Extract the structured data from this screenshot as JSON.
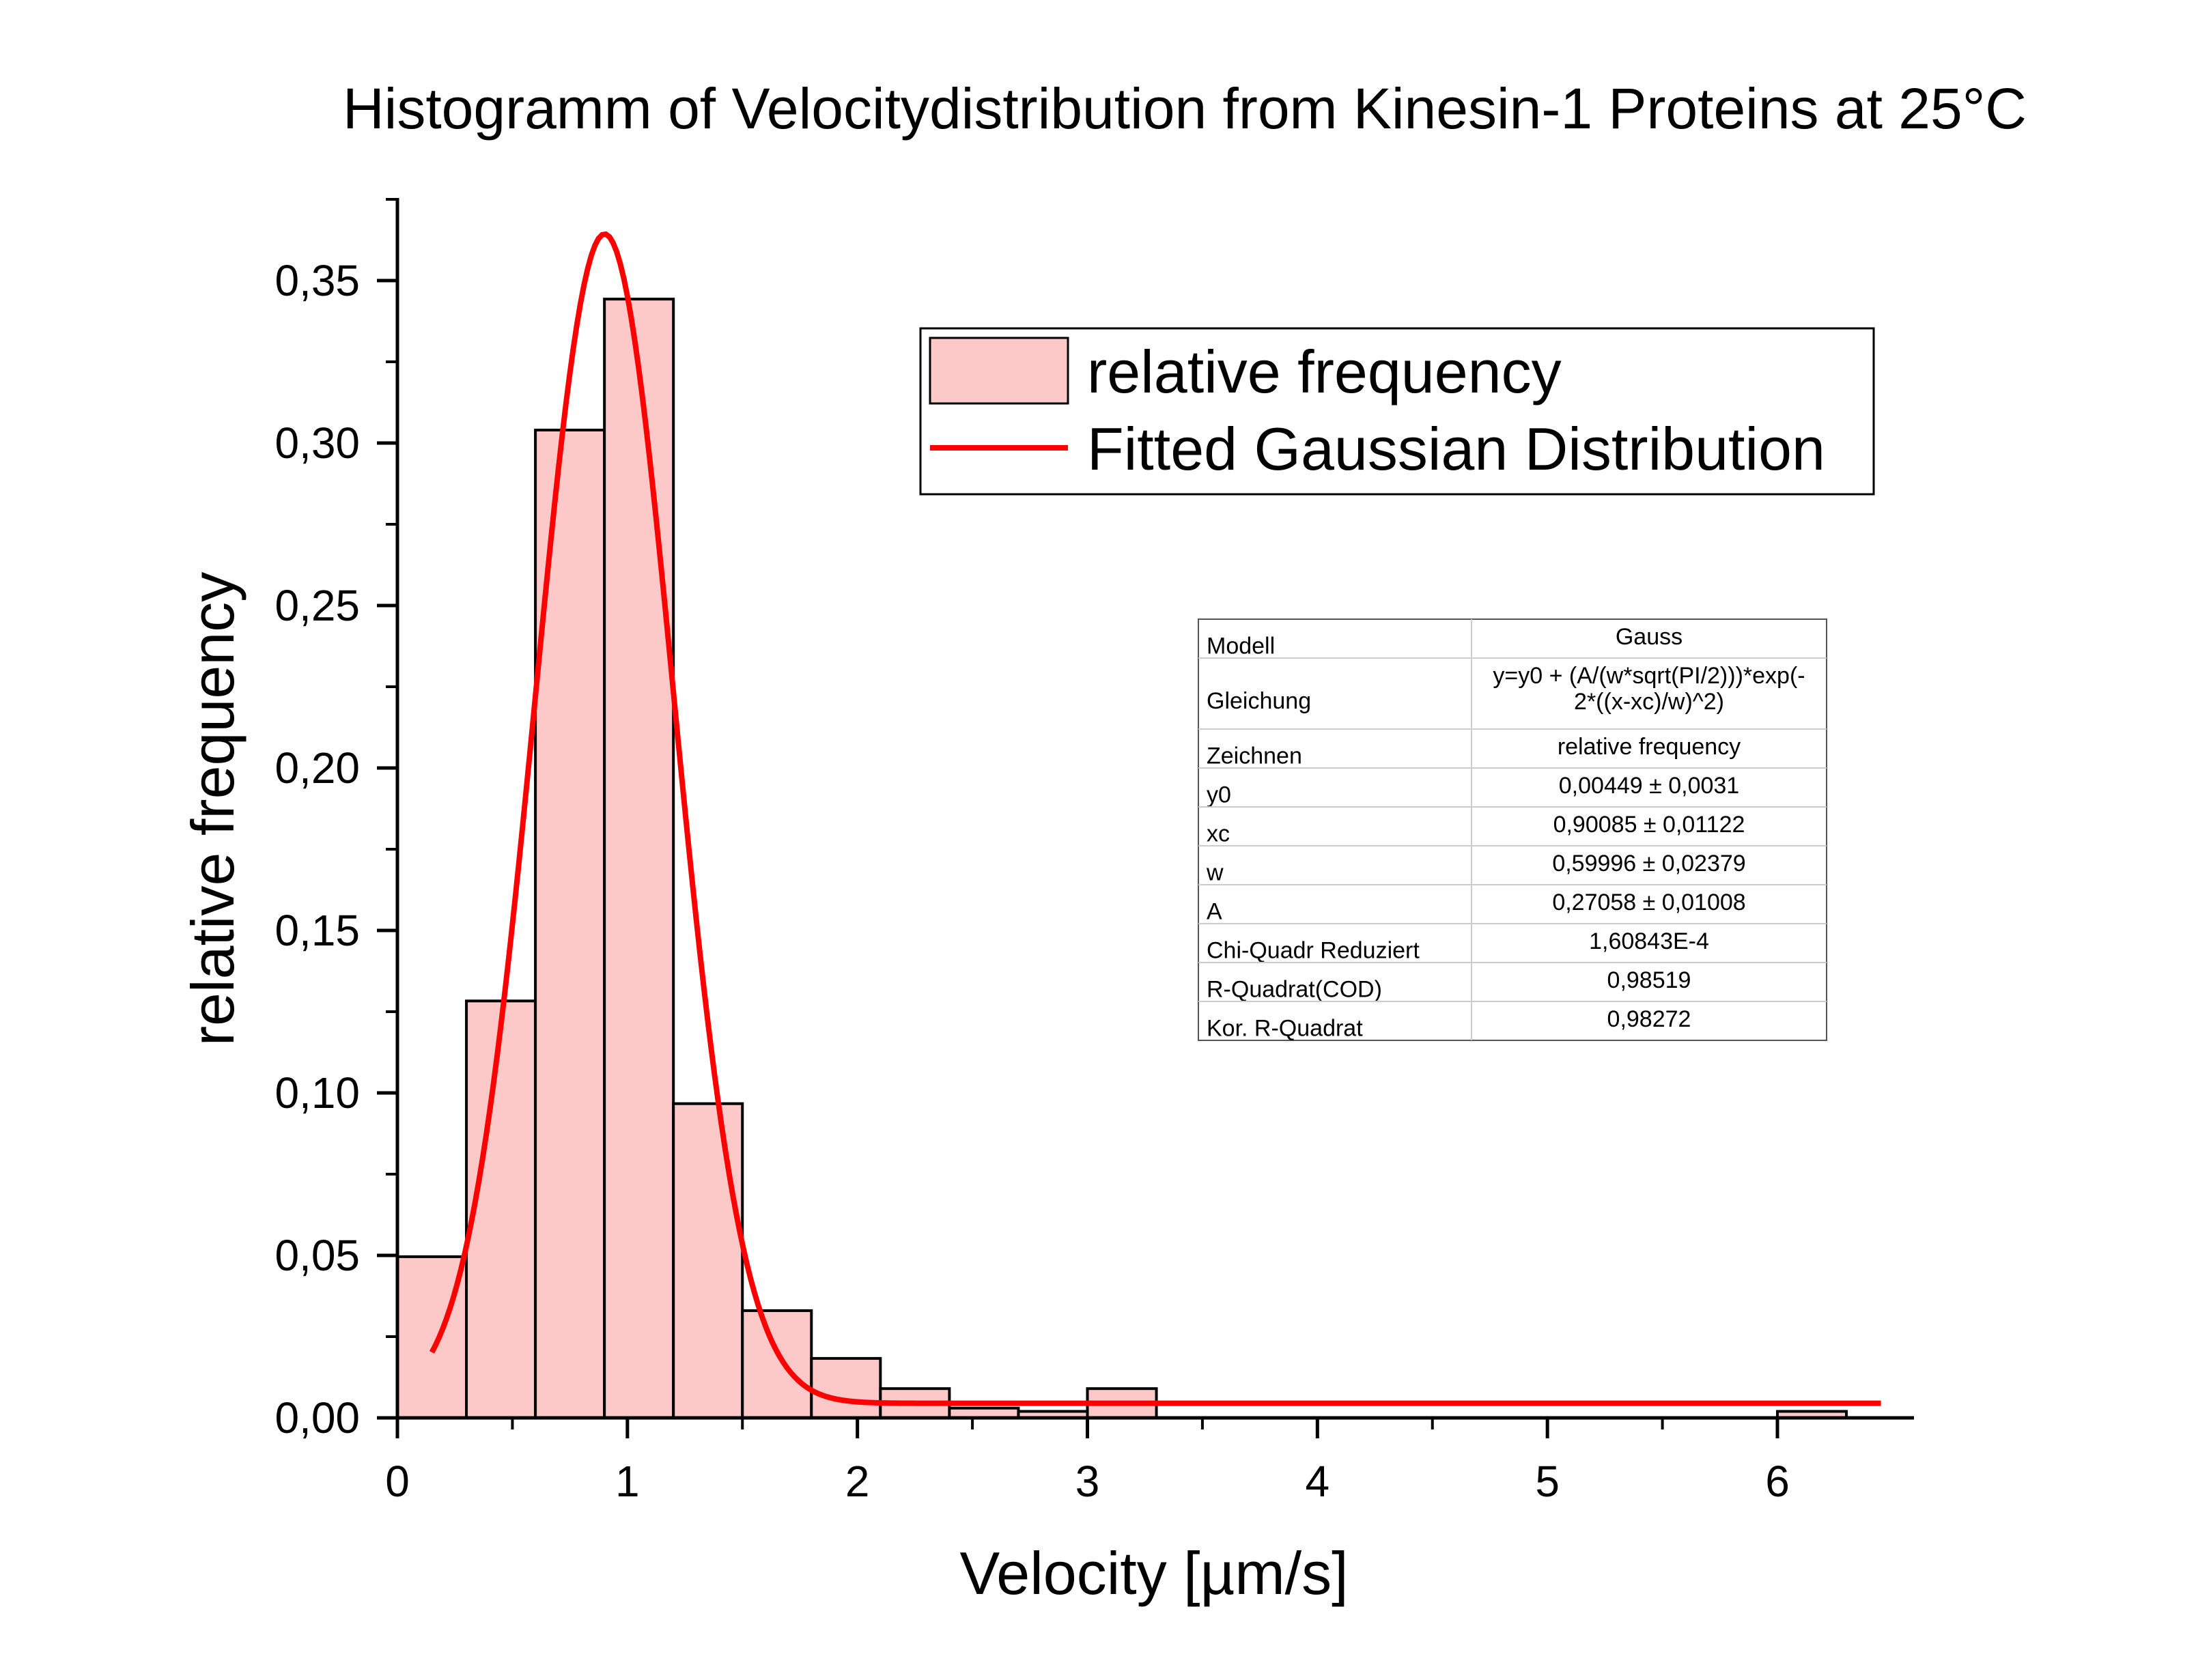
{
  "chart_data": {
    "type": "bar",
    "title": "Histogramm of Velocitydistribution from Kinesin-1 Proteins at 25°C",
    "xlabel": "Velocity [µm/s]",
    "ylabel": "relative frequency",
    "xlim": [
      0,
      6.5
    ],
    "ylim": [
      0,
      0.375
    ],
    "xticks": [
      {
        "value": 0,
        "label": "0"
      },
      {
        "value": 1,
        "label": "1"
      },
      {
        "value": 2,
        "label": "2"
      },
      {
        "value": 3,
        "label": "3"
      },
      {
        "value": 4,
        "label": "4"
      },
      {
        "value": 5,
        "label": "5"
      },
      {
        "value": 6,
        "label": "6"
      }
    ],
    "yticks": [
      {
        "value": 0.0,
        "label": "0,00"
      },
      {
        "value": 0.05,
        "label": "0,05"
      },
      {
        "value": 0.1,
        "label": "0,10"
      },
      {
        "value": 0.15,
        "label": "0,15"
      },
      {
        "value": 0.2,
        "label": "0,20"
      },
      {
        "value": 0.25,
        "label": "0,25"
      },
      {
        "value": 0.3,
        "label": "0,30"
      },
      {
        "value": 0.35,
        "label": "0,35"
      }
    ],
    "bin_width": 0.3,
    "series": [
      {
        "name": "relative frequency",
        "kind": "histogram",
        "color": "#fcc8c8",
        "edge_color": "#000000",
        "bins": [
          {
            "start": 0.0,
            "value": 0.0496
          },
          {
            "start": 0.3,
            "value": 0.1283
          },
          {
            "start": 0.6,
            "value": 0.304
          },
          {
            "start": 0.9,
            "value": 0.3443
          },
          {
            "start": 1.2,
            "value": 0.0967
          },
          {
            "start": 1.5,
            "value": 0.033
          },
          {
            "start": 1.8,
            "value": 0.0183
          },
          {
            "start": 2.1,
            "value": 0.009
          },
          {
            "start": 2.4,
            "value": 0.003
          },
          {
            "start": 2.7,
            "value": 0.002
          },
          {
            "start": 3.0,
            "value": 0.009
          },
          {
            "start": 3.3,
            "value": 0.0
          },
          {
            "start": 3.6,
            "value": 0.0
          },
          {
            "start": 3.9,
            "value": 0.0
          },
          {
            "start": 4.2,
            "value": 0.0
          },
          {
            "start": 4.5,
            "value": 0.0
          },
          {
            "start": 4.8,
            "value": 0.0
          },
          {
            "start": 5.1,
            "value": 0.0
          },
          {
            "start": 5.4,
            "value": 0.0
          },
          {
            "start": 5.7,
            "value": 0.0
          },
          {
            "start": 6.0,
            "value": 0.002
          }
        ]
      },
      {
        "name": "Fitted Gaussian Distribution",
        "kind": "line",
        "color": "#ff0000",
        "model": "gauss",
        "params": {
          "y0": 0.00449,
          "xc": 0.90085,
          "w": 0.59996,
          "A": 0.27058
        },
        "x_range": [
          0.15,
          6.45
        ]
      }
    ],
    "legend": {
      "position": "top-right"
    },
    "grid": false
  },
  "fit_table": {
    "rows": [
      {
        "label": "Modell",
        "value": "Gauss"
      },
      {
        "label": "Gleichung",
        "value": "y=y0 + (A/(w*sqrt(PI/2)))*exp(-",
        "value2": "2*((x-xc)/w)^2)"
      },
      {
        "label": "Zeichnen",
        "value": "relative frequency"
      },
      {
        "label": "y0",
        "value": "0,00449 ± 0,0031"
      },
      {
        "label": "xc",
        "value": "0,90085 ± 0,01122"
      },
      {
        "label": "w",
        "value": "0,59996 ± 0,02379"
      },
      {
        "label": "A",
        "value": "0,27058 ± 0,01008"
      },
      {
        "label": "Chi-Quadr Reduziert",
        "value": "1,60843E-4"
      },
      {
        "label": "R-Quadrat(COD)",
        "value": "0,98519"
      },
      {
        "label": "Kor. R-Quadrat",
        "value": "0,98272"
      }
    ]
  }
}
